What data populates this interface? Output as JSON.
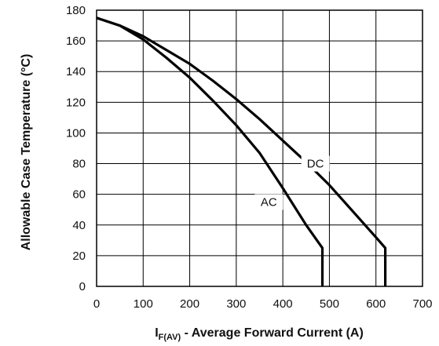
{
  "chart_data": {
    "type": "line",
    "xlabel_main": "I",
    "xlabel_sub": "F(AV)",
    "xlabel_rest": " - Average Forward Current (A)",
    "ylabel": "Allowable Case Temperature (°C)",
    "xlim": [
      0,
      700
    ],
    "ylim": [
      0,
      180
    ],
    "xticks": [
      0,
      100,
      200,
      300,
      400,
      500,
      600,
      700
    ],
    "yticks": [
      0,
      20,
      40,
      60,
      80,
      100,
      120,
      140,
      160,
      180
    ],
    "grid": true,
    "series": [
      {
        "name": "DC",
        "x": [
          0,
          50,
          100,
          150,
          200,
          250,
          300,
          350,
          400,
          450,
          500,
          550,
          600,
          620,
          620
        ],
        "y": [
          175,
          170,
          163,
          154,
          145,
          134,
          122,
          109,
          95,
          81,
          66,
          49,
          32,
          25,
          0
        ],
        "label_at": [
          470,
          80
        ]
      },
      {
        "name": "AC",
        "x": [
          0,
          50,
          100,
          150,
          200,
          250,
          300,
          350,
          400,
          450,
          485,
          485
        ],
        "y": [
          175,
          170,
          161,
          149,
          136,
          121,
          105,
          87,
          64,
          40,
          25,
          0
        ],
        "label_at": [
          370,
          55
        ]
      }
    ]
  }
}
